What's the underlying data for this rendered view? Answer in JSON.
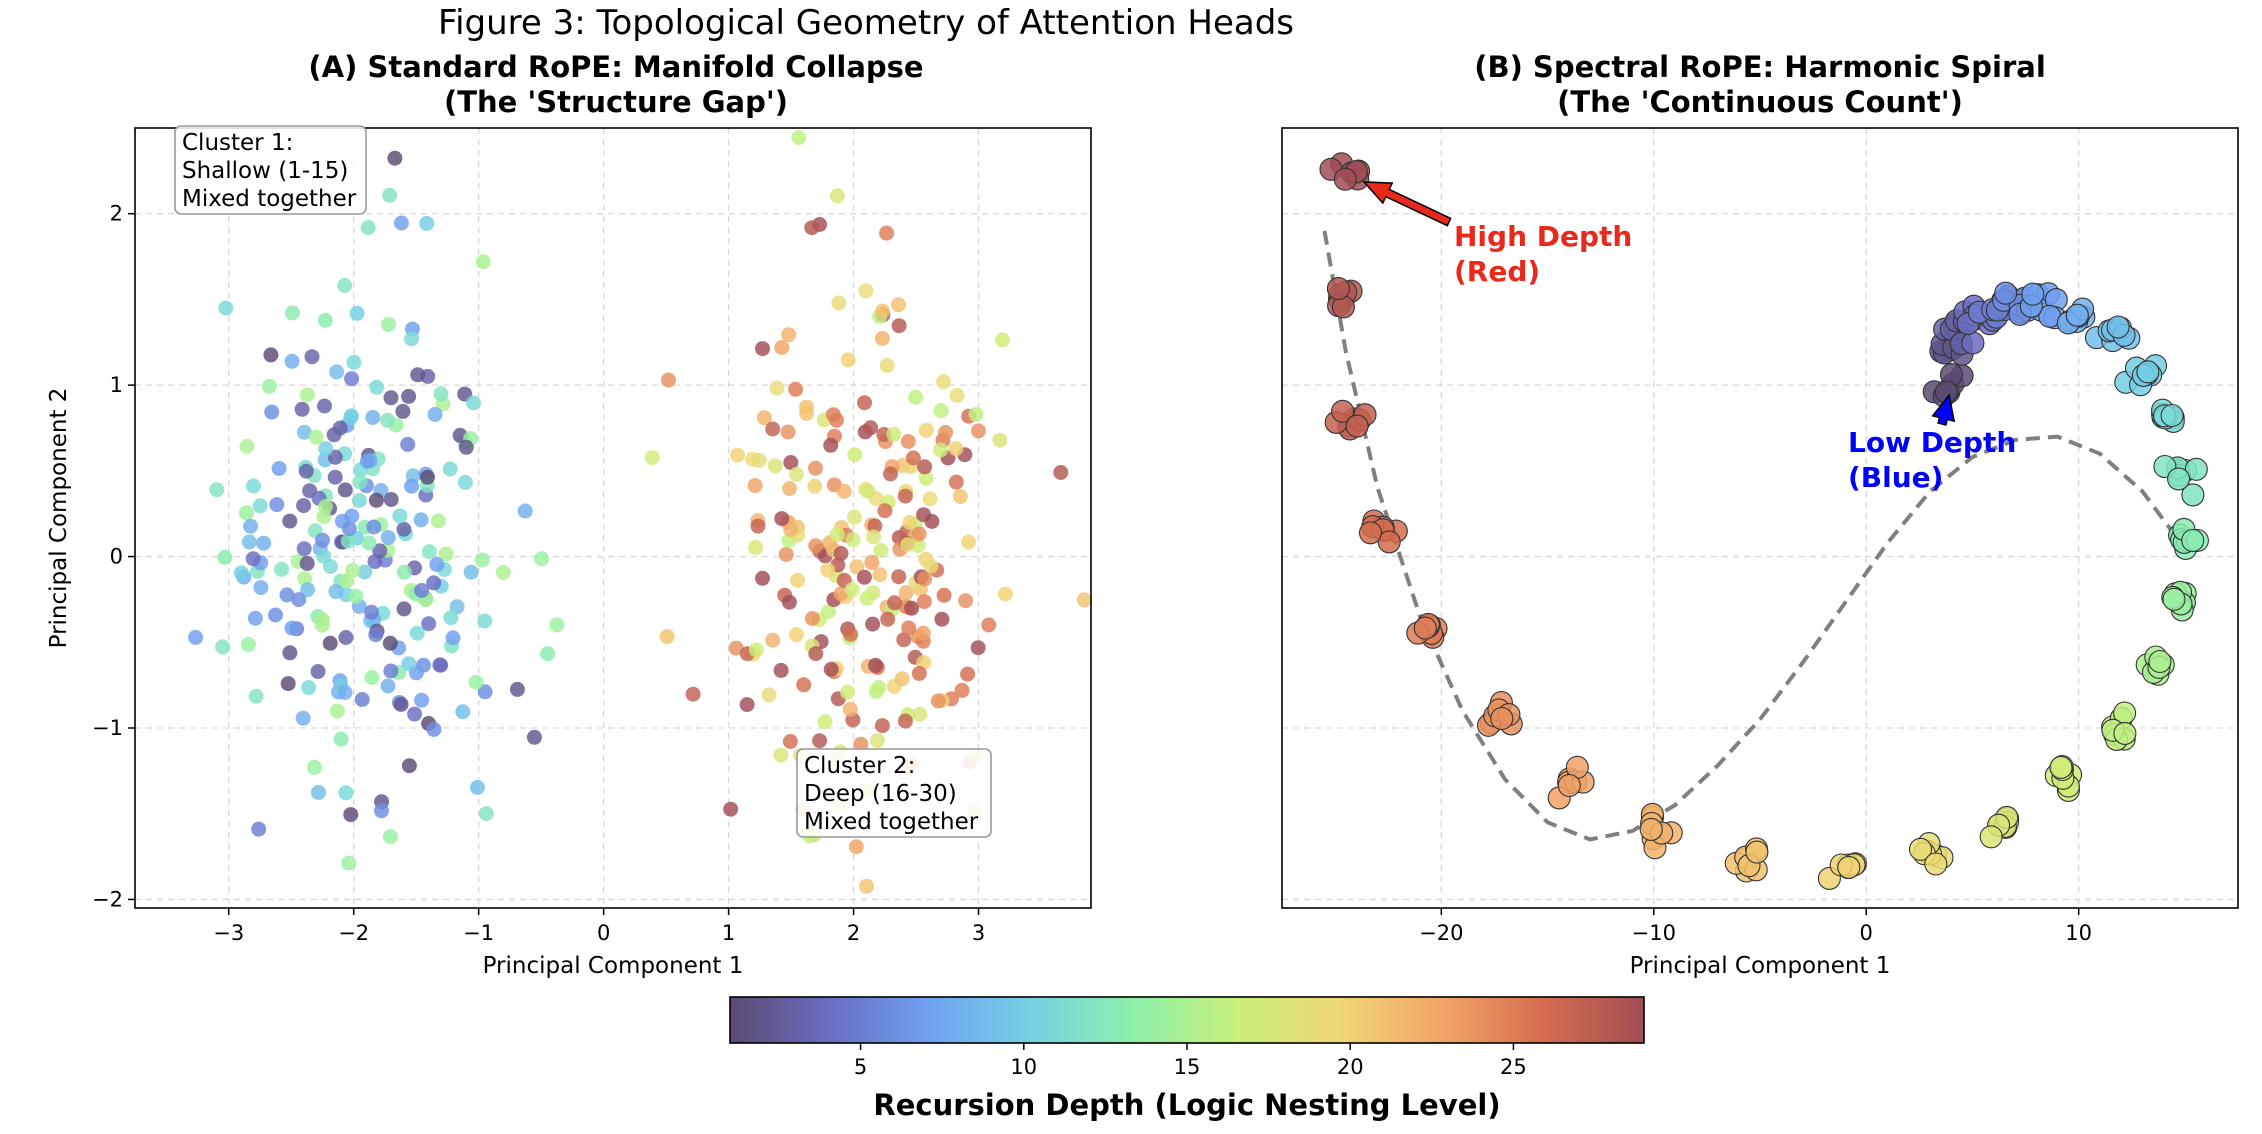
{
  "figure_title": "Figure 3: Topological Geometry of Attention Heads",
  "chart_data": [
    {
      "type": "scatter",
      "title": "(A) Standard RoPE: Manifold Collapse",
      "subtitle": "(The 'Structure Gap')",
      "xlabel": "Principal Component 1",
      "ylabel": "Principal Component 2",
      "xlim": [
        -3.75,
        3.9
      ],
      "ylim": [
        -2.05,
        2.5
      ],
      "xticks": [
        -3,
        -2,
        -1,
        0,
        1,
        2,
        3
      ],
      "yticks": [
        -2,
        -1,
        0,
        1,
        2
      ],
      "grid": true,
      "color_by": "Recursion Depth",
      "clusters": [
        {
          "name": "Cluster 1",
          "center": [
            -1.9,
            0.15
          ],
          "spread": [
            0.55,
            0.75
          ],
          "depth_range": [
            1,
            15
          ],
          "n_points": 240
        },
        {
          "name": "Cluster 2",
          "center": [
            2.1,
            0.0
          ],
          "spread": [
            0.55,
            0.7
          ],
          "depth_range": [
            16,
            30
          ],
          "n_points": 240
        }
      ],
      "annotations": [
        {
          "lines": [
            "Cluster 1:",
            "Shallow (1-15)",
            "Mixed together"
          ],
          "position": "top-left"
        },
        {
          "lines": [
            "Cluster 2:",
            "Deep (16-30)",
            "Mixed together"
          ],
          "position": "bottom-right"
        }
      ]
    },
    {
      "type": "scatter",
      "title": "(B) Spectral RoPE: Harmonic Spiral",
      "subtitle": "(The 'Continuous Count')",
      "xlabel": "Principal Component 1",
      "ylabel": "",
      "xlim": [
        -27.5,
        17.5
      ],
      "ylim": [
        -2.05,
        2.5
      ],
      "xticks": [
        -20,
        -10,
        0,
        10
      ],
      "yticks": [],
      "grid": true,
      "color_by": "Recursion Depth",
      "points_per_depth": 8,
      "spiral": [
        {
          "depth": 1,
          "x": 4.0,
          "y": 1.0
        },
        {
          "depth": 2,
          "x": 4.0,
          "y": 1.22
        },
        {
          "depth": 3,
          "x": 4.4,
          "y": 1.33
        },
        {
          "depth": 4,
          "x": 5.2,
          "y": 1.4
        },
        {
          "depth": 5,
          "x": 6.2,
          "y": 1.46
        },
        {
          "depth": 6,
          "x": 7.3,
          "y": 1.47
        },
        {
          "depth": 7,
          "x": 8.5,
          "y": 1.47
        },
        {
          "depth": 8,
          "x": 10.0,
          "y": 1.4
        },
        {
          "depth": 9,
          "x": 11.5,
          "y": 1.27
        },
        {
          "depth": 10,
          "x": 12.9,
          "y": 1.05
        },
        {
          "depth": 11,
          "x": 14.0,
          "y": 0.8
        },
        {
          "depth": 12,
          "x": 14.9,
          "y": 0.48
        },
        {
          "depth": 13,
          "x": 15.1,
          "y": 0.1
        },
        {
          "depth": 14,
          "x": 14.7,
          "y": -0.25
        },
        {
          "depth": 15,
          "x": 13.6,
          "y": -0.65
        },
        {
          "depth": 16,
          "x": 11.9,
          "y": -1.0
        },
        {
          "depth": 17,
          "x": 9.4,
          "y": -1.3
        },
        {
          "depth": 18,
          "x": 6.5,
          "y": -1.55
        },
        {
          "depth": 19,
          "x": 2.9,
          "y": -1.72
        },
        {
          "depth": 20,
          "x": -1.0,
          "y": -1.8
        },
        {
          "depth": 21,
          "x": -5.3,
          "y": -1.77
        },
        {
          "depth": 22,
          "x": -9.7,
          "y": -1.6
        },
        {
          "depth": 23,
          "x": -13.9,
          "y": -1.32
        },
        {
          "depth": 24,
          "x": -17.5,
          "y": -0.95
        },
        {
          "depth": 25,
          "x": -20.6,
          "y": -0.45
        },
        {
          "depth": 26,
          "x": -22.9,
          "y": 0.15
        },
        {
          "depth": 27,
          "x": -24.2,
          "y": 0.8
        },
        {
          "depth": 28,
          "x": -24.6,
          "y": 1.5
        },
        {
          "depth": 29,
          "x": -24.3,
          "y": 2.22
        }
      ],
      "trend_line": {
        "style": "dashed",
        "color": "#808080",
        "x": [
          -25.5,
          -24.5,
          -23.0,
          -21.0,
          -19.0,
          -17.0,
          -15.0,
          -13.0,
          -11.0,
          -9.0,
          -7.0,
          -5.0,
          -3.0,
          -1.0,
          1.0,
          3.0,
          5.0,
          7.0,
          9.0,
          11.0,
          13.0,
          14.5
        ],
        "y": [
          1.9,
          1.2,
          0.4,
          -0.35,
          -0.9,
          -1.3,
          -1.55,
          -1.65,
          -1.6,
          -1.45,
          -1.22,
          -0.95,
          -0.62,
          -0.27,
          0.08,
          0.38,
          0.58,
          0.68,
          0.7,
          0.6,
          0.38,
          0.13
        ]
      },
      "callouts": [
        {
          "lines": [
            "High Depth",
            "(Red)"
          ],
          "color": "#e8291c",
          "target": [
            -24.3,
            2.22
          ]
        },
        {
          "lines": [
            "Low Depth",
            "(Blue)"
          ],
          "color": "#0000ff",
          "target": [
            4.0,
            1.0
          ]
        }
      ]
    }
  ],
  "colorbar": {
    "label": "Recursion Depth (Logic Nesting Level)",
    "range": [
      1,
      29
    ],
    "ticks": [
      5,
      10,
      15,
      20,
      25
    ],
    "colormap": [
      "#5c4a72",
      "#6a6ec4",
      "#6fa3f2",
      "#75d3e2",
      "#8ef0a8",
      "#c9f079",
      "#f0d775",
      "#f2a668",
      "#d66d4f",
      "#a14e55"
    ]
  }
}
